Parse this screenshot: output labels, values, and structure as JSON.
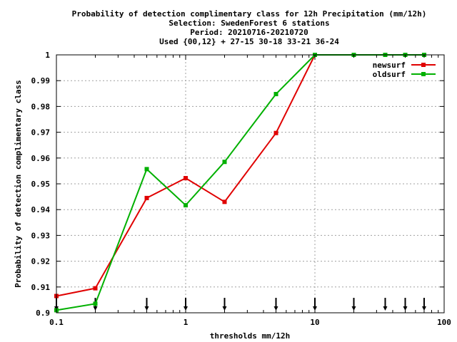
{
  "chart_data": {
    "type": "line",
    "title_lines": [
      "Probability of detection complimentary class  for 12h Precipitation (mm/12h)",
      "Selection: SwedenForest      6 stations",
      "Period: 20210716-20210720",
      "Used {00,12} + 27-15 30-18 33-21 36-24"
    ],
    "xlabel": "thresholds mm/12h",
    "ylabel": "Probability of detection complimentary class",
    "x_scale": "log",
    "xlim": [
      0.1,
      100
    ],
    "ylim": [
      0.9,
      1.0
    ],
    "x_ticks": [
      0.1,
      1,
      10,
      100
    ],
    "x_tick_labels": [
      "0.1",
      "1",
      "10",
      "100"
    ],
    "y_ticks": [
      0.9,
      0.91,
      0.92,
      0.93,
      0.94,
      0.95,
      0.96,
      0.97,
      0.98,
      0.99,
      1.0
    ],
    "y_tick_labels": [
      "0.9",
      "0.91",
      "0.92",
      "0.93",
      "0.94",
      "0.95",
      "0.96",
      "0.97",
      "0.98",
      "0.99",
      "1"
    ],
    "grid": true,
    "legend_position": "top-right",
    "threshold_markers": [
      0.1,
      0.2,
      0.5,
      1,
      2,
      5,
      10,
      20,
      35,
      50,
      70
    ],
    "series": [
      {
        "name": "newsurf",
        "color": "#e00000",
        "x": [
          0.1,
          0.2,
          0.5,
          1,
          2,
          5,
          10,
          20,
          35,
          50,
          70
        ],
        "y": [
          0.9065,
          0.9095,
          0.9445,
          0.9522,
          0.943,
          0.9697,
          1.0,
          1.0,
          1.0,
          1.0,
          1.0
        ]
      },
      {
        "name": "oldsurf",
        "color": "#00b000",
        "x": [
          0.1,
          0.2,
          0.5,
          1,
          2,
          5,
          10,
          20,
          35,
          50,
          70
        ],
        "y": [
          0.901,
          0.9035,
          0.9557,
          0.9417,
          0.9585,
          0.9848,
          1.0,
          1.0,
          1.0,
          1.0,
          1.0
        ]
      }
    ]
  }
}
